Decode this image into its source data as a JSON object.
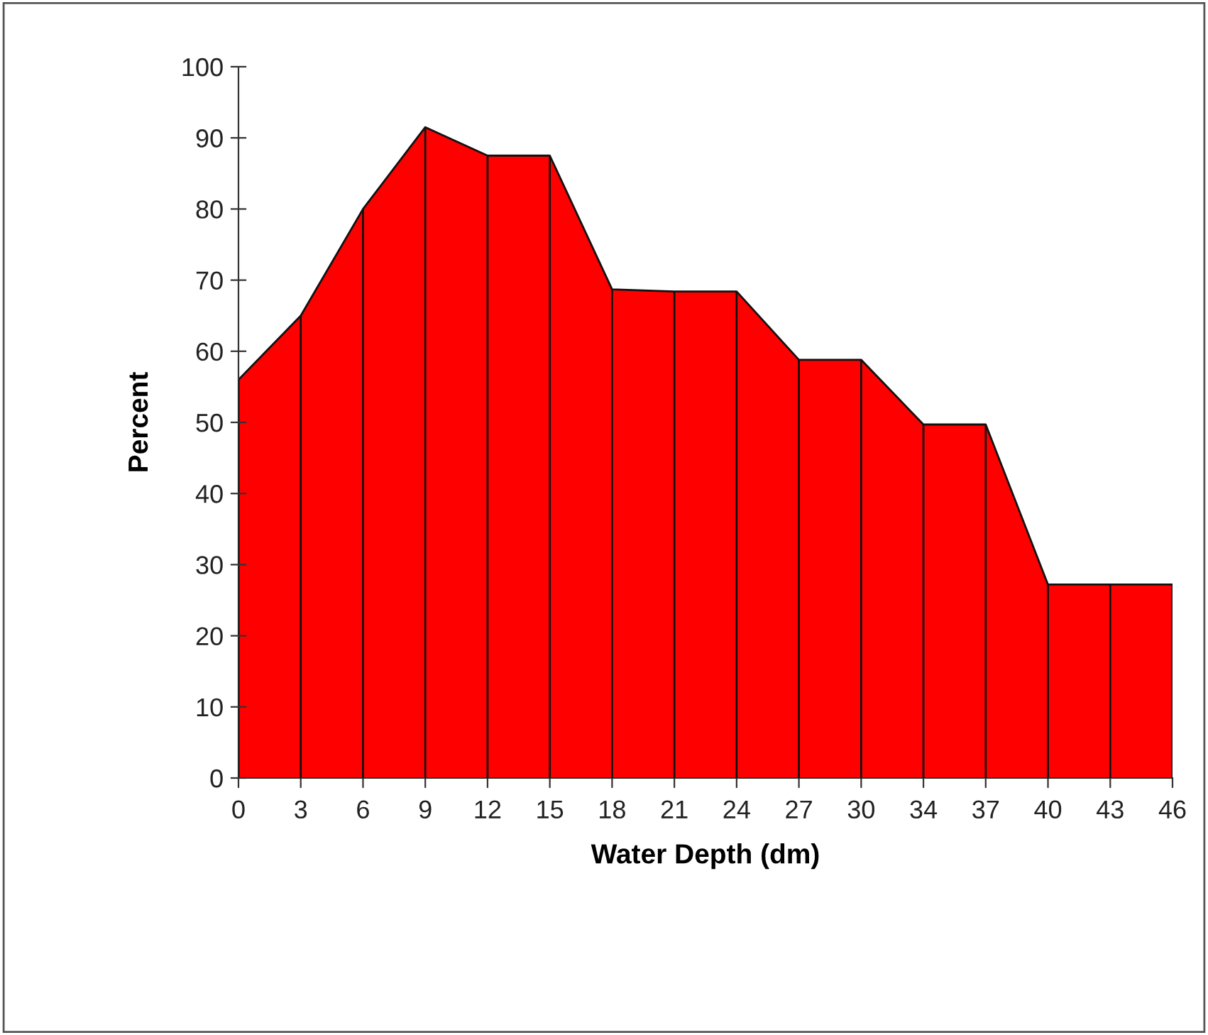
{
  "chart_data": {
    "type": "area",
    "xlabel": "Water Depth (dm)",
    "ylabel": "Percent",
    "categories": [
      "0",
      "3",
      "6",
      "9",
      "12",
      "15",
      "18",
      "21",
      "24",
      "27",
      "30",
      "34",
      "37",
      "40",
      "43",
      "46"
    ],
    "series": [
      {
        "color": "#ff0000",
        "values": [
          56,
          65,
          80,
          91.5,
          87.5,
          87.5,
          68.7,
          68.4,
          68.4,
          58.8,
          58.8,
          49.7,
          49.7,
          27.2,
          27.2,
          27.2
        ]
      }
    ],
    "ylim": [
      0,
      100
    ],
    "yticks": [
      0,
      10,
      20,
      30,
      40,
      50,
      60,
      70,
      80,
      90,
      100
    ],
    "grid": "x",
    "legend": false
  }
}
